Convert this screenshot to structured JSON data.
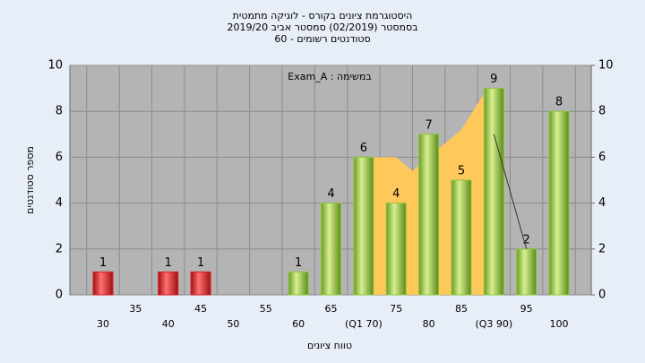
{
  "chart_data": {
    "type": "bar",
    "title": [
      "היסטוגרמת ציונים בקורס - לוגיקה מתמטית",
      "בסמסטר  (02/2019)  סמסטר אביב 2019/20",
      "סטודנטים רשומים - 60"
    ],
    "annotation": "Exam_A : במשימה",
    "x_label": "טווח ציונים",
    "y_label": "מספר סטודנטים",
    "categories": [
      "30",
      "35",
      "40",
      "45",
      "50",
      "55",
      "60",
      "65",
      "(Q1 70)",
      "75",
      "80",
      "85",
      "(Q3 90)",
      "95",
      "100"
    ],
    "values": [
      1,
      null,
      1,
      1,
      null,
      null,
      1,
      4,
      6,
      4,
      7,
      5,
      9,
      2,
      8
    ],
    "colors": [
      "#d42020",
      null,
      "#d42020",
      "#d42020",
      null,
      null,
      "#8cc83c",
      "#8cc83c",
      "#8cc83c",
      "#8cc83c",
      "#8cc83c",
      "#8cc83c",
      "#8cc83c",
      "#8cc83c",
      "#8cc83c"
    ],
    "area": {
      "color": "#ffc85a",
      "x": [
        70,
        75,
        77.5,
        80,
        85,
        89,
        90
      ],
      "values": [
        6,
        6,
        5.4,
        6,
        7.2,
        9,
        9
      ]
    },
    "line": {
      "color": "#333333",
      "x": [
        90,
        95
      ],
      "values": [
        7,
        2
      ]
    },
    "ylim": [
      0,
      10
    ],
    "yticks": [
      0,
      2,
      4,
      6,
      8,
      10
    ],
    "y2lim": [
      0,
      10
    ],
    "y2ticks": [
      0,
      2,
      4,
      6,
      8,
      10
    ],
    "grid": true
  }
}
